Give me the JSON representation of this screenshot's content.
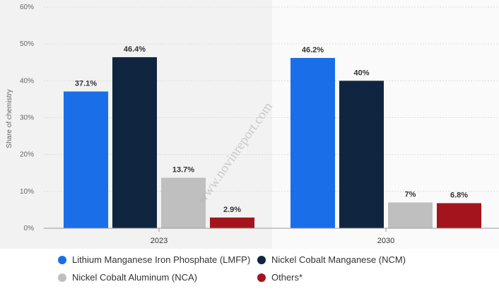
{
  "chart_data": {
    "type": "bar",
    "categories": [
      "2023",
      "2030"
    ],
    "series": [
      {
        "name": "Lithium Manganese Iron Phosphate (LMFP)",
        "color": "#1a6fe8",
        "values": [
          37.1,
          46.2
        ],
        "labels": [
          "37.1%",
          "46.2%"
        ]
      },
      {
        "name": "Nickel Cobalt Manganese (NCM)",
        "color": "#102540",
        "values": [
          46.4,
          40
        ],
        "labels": [
          "46.4%",
          "40%"
        ]
      },
      {
        "name": "Nickel Cobalt Aluminum (NCA)",
        "color": "#bfbfbf",
        "values": [
          13.7,
          7
        ],
        "labels": [
          "13.7%",
          "7%"
        ]
      },
      {
        "name": "Others*",
        "color": "#a3141c",
        "values": [
          2.9,
          6.8
        ],
        "labels": [
          "2.9%",
          "6.8%"
        ]
      }
    ],
    "ylabel": "Share of chemistry",
    "xlabel": "",
    "ylim": [
      0,
      60
    ],
    "yticks": [
      "0%",
      "10%",
      "20%",
      "30%",
      "40%",
      "50%",
      "60%"
    ],
    "grid": true,
    "legend_position": "bottom",
    "watermark": "www.novinreport.com"
  }
}
